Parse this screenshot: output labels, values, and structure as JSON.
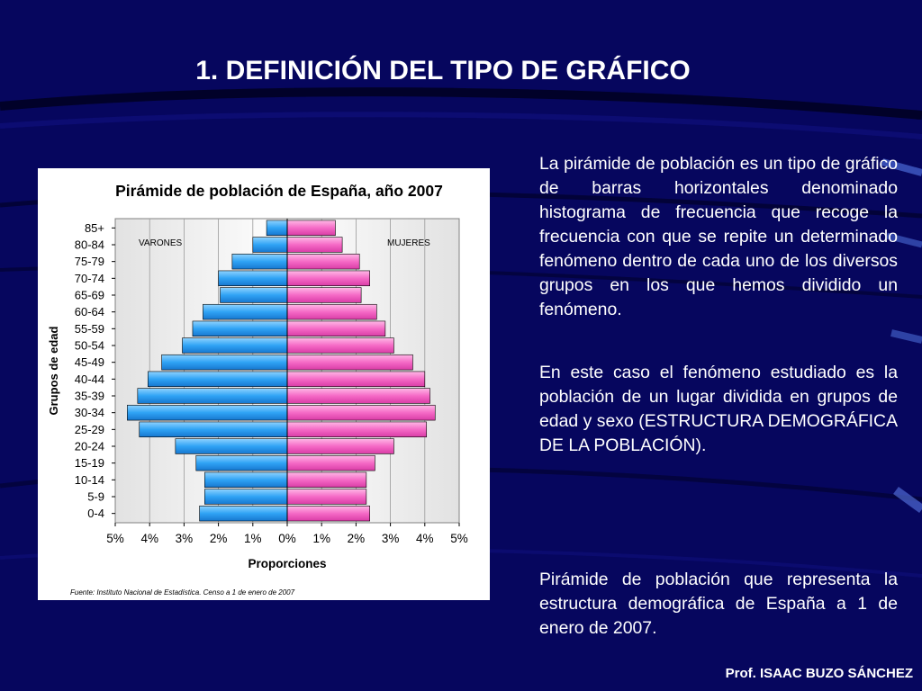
{
  "slide": {
    "title": "1. DEFINICIÓN DEL TIPO DE GRÁFICO",
    "paragraph_1": "La pirámide de población es un tipo de gráfico de barras horizontales denominado histograma de frecuencia que recoge la frecuencia con que se repite un determinado fenómeno dentro de cada uno de los diversos grupos en los que hemos dividido un fenómeno.",
    "paragraph_2": "En este caso el fenómeno estudiado es la población de un lugar dividida en grupos de edad y sexo (ESTRUCTURA DEMOGRÁFICA DE LA POBLACIÓN).",
    "caption": "Pirámide de población que representa la estructura demográfica de España a 1 de enero de 2007.",
    "footer": "Prof. ISAAC BUZO SÁNCHEZ"
  },
  "colors": {
    "background": "#06065e",
    "varones_bar": "#2fa3f5",
    "mujeres_bar": "#f56ac6"
  },
  "chart_data": {
    "type": "bar",
    "orientation": "horizontal-pyramid",
    "title": "Pirámide de población de España, año 2007",
    "xlabel": "Proporciones",
    "ylabel": "Grupos de edad",
    "source": "Fuente: Instituto Nacional de Estadística. Censo a 1 de enero de 2007",
    "xlim": [
      -5,
      5
    ],
    "x_ticks": [
      "5%",
      "4%",
      "3%",
      "2%",
      "1%",
      "0%",
      "1%",
      "2%",
      "3%",
      "4%",
      "5%"
    ],
    "grid": true,
    "categories": [
      "85+",
      "80-84",
      "75-79",
      "70-74",
      "65-69",
      "60-64",
      "55-59",
      "50-54",
      "45-49",
      "40-44",
      "35-39",
      "30-34",
      "25-29",
      "20-24",
      "15-19",
      "10-14",
      "5-9",
      "0-4"
    ],
    "series": [
      {
        "name": "VARONES",
        "values": [
          0.6,
          1.0,
          1.6,
          2.0,
          1.95,
          2.45,
          2.75,
          3.05,
          3.65,
          4.05,
          4.35,
          4.65,
          4.3,
          3.25,
          2.65,
          2.4,
          2.4,
          2.55
        ]
      },
      {
        "name": "MUJERES",
        "values": [
          1.4,
          1.6,
          2.1,
          2.4,
          2.15,
          2.6,
          2.85,
          3.1,
          3.65,
          4.0,
          4.15,
          4.3,
          4.05,
          3.1,
          2.55,
          2.3,
          2.3,
          2.4
        ]
      }
    ]
  }
}
